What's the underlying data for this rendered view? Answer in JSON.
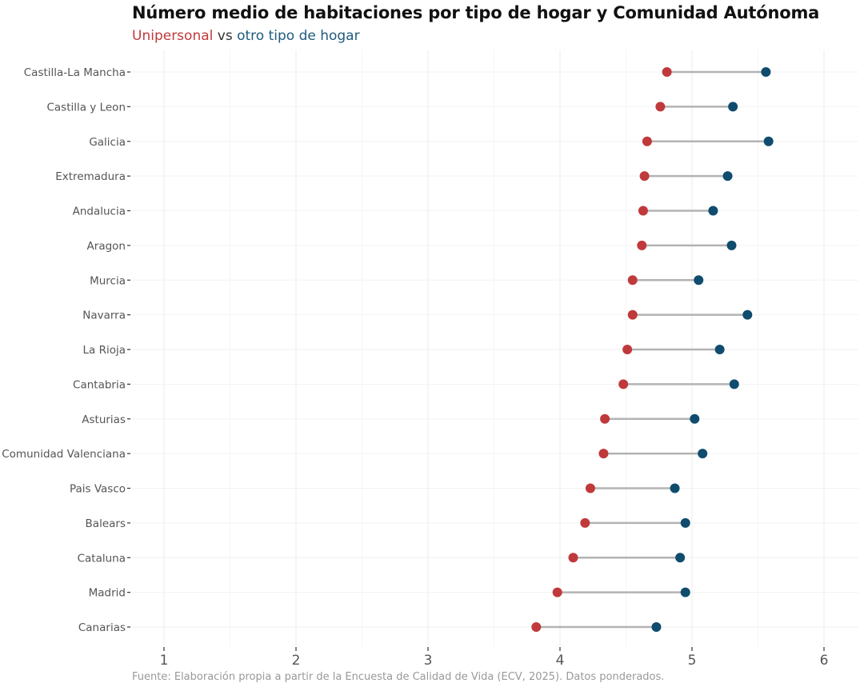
{
  "chart_data": {
    "type": "dumbbell",
    "title": "Número medio de habitaciones por tipo de hogar y Comunidad Autónoma",
    "subtitle": {
      "part1": "Unipersonal",
      "part2": " vs ",
      "part3": "otro tipo de hogar"
    },
    "caption": "Fuente: Elaboración propia a partir de la Encuesta de Calidad de Vida (ECV, 2025). Datos ponderados.",
    "xlabel": "",
    "ylabel": "",
    "xlim": [
      0.8,
      6.25
    ],
    "xticks": [
      1,
      2,
      3,
      4,
      5,
      6
    ],
    "xtick_labels": [
      "1",
      "2",
      "3",
      "4",
      "5",
      "6"
    ],
    "grid": true,
    "categories": [
      "Castilla-La Mancha",
      "Castilla y Leon",
      "Galicia",
      "Extremadura",
      "Andalucia",
      "Aragon",
      "Murcia",
      "Navarra",
      "La Rioja",
      "Cantabria",
      "Asturias",
      "Comunidad Valenciana",
      "Pais Vasco",
      "Balears",
      "Cataluna",
      "Madrid",
      "Canarias"
    ],
    "series": [
      {
        "name": "Unipersonal",
        "color": "#c0393b",
        "values": [
          4.81,
          4.76,
          4.66,
          4.64,
          4.63,
          4.62,
          4.55,
          4.55,
          4.51,
          4.48,
          4.34,
          4.33,
          4.23,
          4.19,
          4.1,
          3.98,
          3.82
        ]
      },
      {
        "name": "otro tipo de hogar",
        "color": "#0f4c6e",
        "values": [
          5.56,
          5.31,
          5.58,
          5.27,
          5.16,
          5.3,
          5.05,
          5.42,
          5.21,
          5.32,
          5.02,
          5.08,
          4.87,
          4.95,
          4.91,
          4.95,
          4.73
        ]
      }
    ],
    "segment_color": "#b3b3b3",
    "legend": "subtitle"
  }
}
